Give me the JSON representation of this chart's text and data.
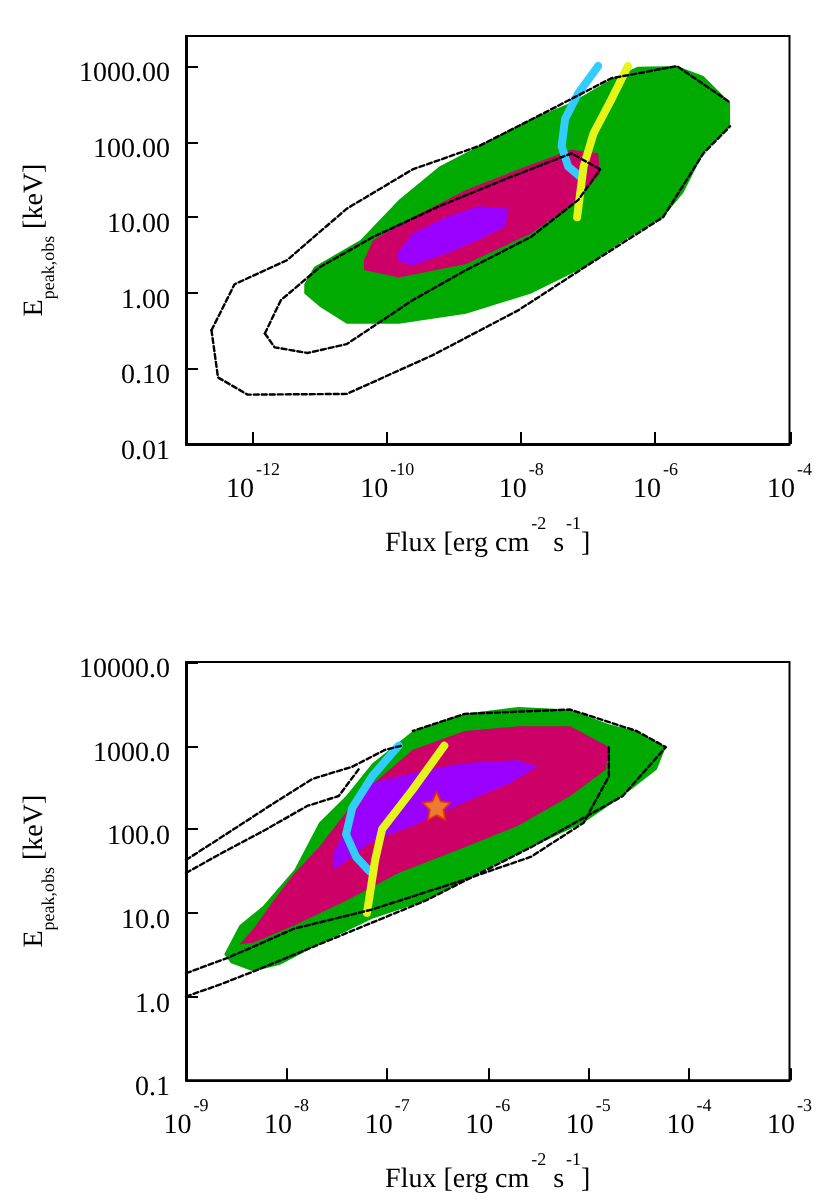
{
  "chart_data": [
    {
      "type": "area",
      "xlabel": "Flux [erg cm$^{-2}$ s$^{-1}$]",
      "ylabel": "E$_{peak,obs}$ [keV]",
      "log": "xy",
      "xlim": [
        1e-13,
        0.0001
      ],
      "ylim": [
        0.01,
        2500
      ],
      "xticks": [
        {
          "value": 1e-12,
          "label": "10$^{-12}$"
        },
        {
          "value": 1e-10,
          "label": "10$^{-10}$"
        },
        {
          "value": 1e-08,
          "label": "10$^{-8}$"
        },
        {
          "value": 1e-06,
          "label": "10$^{-6}$"
        },
        {
          "value": 0.0001,
          "label": "10$^{-4}$"
        }
      ],
      "yticks": [
        0.01,
        {
          "value": 0.1,
          "label": "0.10"
        },
        {
          "value": 1,
          "label": "1.00"
        },
        {
          "value": 10,
          "label": "10.00"
        },
        {
          "value": 100,
          "label": "100.00"
        },
        {
          "value": 1000,
          "label": "1000.00"
        }
      ],
      "series": [
        {
          "color": "#00aa00",
          "x": [
            5.8e-12,
            8.1e-12,
            4e-11,
            1.5e-10,
            6e-10,
            2.3e-09,
            1.4e-08,
            5.6e-08,
            2.2e-07,
            5.4e-07,
            2.1e-06,
            5.2e-06,
            1.3e-05,
            1.3e-05,
            5.2e-06,
            2.6e-06,
            1.3e-06,
            3.5e-07,
            8.9e-08,
            1.4e-08,
            1.5e-09,
            1.5e-10,
            2.5e-11,
            1e-11,
            5.8e-12
          ],
          "values": [
            1.3,
            2.2,
            5.0,
            17,
            47,
            87,
            200,
            330,
            670,
            980,
            1000,
            740,
            330,
            160,
            70,
            21,
            10,
            5.0,
            2.2,
            0.98,
            0.53,
            0.39,
            0.39,
            0.65,
            0.98
          ]
        },
        {
          "color": "#cc0066",
          "x": [
            4.5e-11,
            6.2e-11,
            2.4e-10,
            1.5e-09,
            9.1e-09,
            5.6e-08,
            1.4e-07,
            1.5e-07,
            7.1e-08,
            1.4e-08,
            1.5e-09,
            1.5e-10,
            4.5e-11
          ],
          "values": [
            2.7,
            5.0,
            10,
            23,
            43,
            78,
            70,
            38,
            17,
            6.1,
            2.4,
            1.6,
            2.0
          ]
        },
        {
          "color": "#9900ff",
          "x": [
            1.4e-10,
            2.4e-10,
            7.6e-10,
            2.3e-09,
            6.5e-09,
            5.8e-09,
            2.3e-09,
            7.6e-10,
            2.4e-10,
            1.5e-10
          ],
          "values": [
            3.3,
            6.1,
            10,
            14,
            13,
            7.6,
            5.0,
            3.3,
            2.3,
            2.6
          ]
        },
        {
          "type": "line",
          "color": "#000000",
          "line_style": "dashed",
          "marker": "none",
          "x": [
            2.4e-13,
            5.3e-13,
            3.2e-12,
            2.5e-11,
            2.4e-10,
            2.3e-09,
            2.2e-08,
            2.2e-07,
            2.1e-06,
            1.3e-05
          ],
          "values": [
            0.32,
            1.3,
            2.7,
            13,
            43,
            87,
            240,
            690,
            1000,
            330
          ]
        },
        {
          "type": "line",
          "color": "#000000",
          "line_style": "dashed",
          "marker": "none",
          "x": [
            2.4e-13,
            3e-13,
            8.3e-13,
            2.5e-11,
            4.8e-10,
            9.1e-09,
            8.9e-08,
            1.3e-06,
            5.2e-06,
            1.3e-05
          ],
          "values": [
            0.32,
            0.076,
            0.045,
            0.046,
            0.15,
            0.59,
            2.2,
            10,
            70,
            160
          ]
        },
        {
          "type": "line",
          "color": "#000000",
          "line_style": "dashed",
          "marker": "none",
          "x": [
            1.5e-12,
            2.6e-12,
            1e-11,
            6.2e-11,
            6e-10,
            5.8e-09,
            5.6e-08,
            1.5e-07
          ],
          "values": [
            0.29,
            0.8,
            2.2,
            5.5,
            14,
            32,
            70,
            43
          ]
        },
        {
          "type": "line",
          "color": "#000000",
          "line_style": "dashed",
          "marker": "none",
          "x": [
            1.5e-12,
            2.1e-12,
            6.5e-12,
            2.5e-11,
            2.4e-10,
            1.5e-09,
            1.4e-08,
            7.1e-08,
            1.5e-07
          ],
          "values": [
            0.29,
            0.19,
            0.16,
            0.21,
            0.8,
            2.0,
            5.5,
            17,
            43
          ]
        },
        {
          "type": "line",
          "color": "#33ccff",
          "line_style": "solid",
          "marker": "none",
          "x": [
            1.4e-07,
            7.1e-08,
            4.5e-08,
            4e-08,
            5e-08,
            7.4e-08
          ],
          "values": [
            1000,
            440,
            200,
            87,
            47,
            35
          ]
        },
        {
          "type": "line",
          "color": "#e5f51a",
          "line_style": "solid",
          "marker": "none",
          "x": [
            3.9e-07,
            2.2e-07,
            1.2e-07,
            8.5e-08,
            6.8e-08
          ],
          "values": [
            1000,
            360,
            130,
            47,
            10
          ]
        }
      ]
    },
    {
      "type": "area",
      "xlabel": "Flux [erg cm$^{-2}$ s$^{-1}$]",
      "ylabel": "E$_{peak,obs}$ [keV]",
      "log": "xy",
      "xlim": [
        1e-09,
        0.001
      ],
      "ylim": [
        0.1,
        10000
      ],
      "xticks": [
        {
          "value": 1e-09,
          "label": "10$^{-9}$"
        },
        {
          "value": 1e-08,
          "label": "10$^{-8}$"
        },
        {
          "value": 1e-07,
          "label": "10$^{-7}$"
        },
        {
          "value": 1e-06,
          "label": "10$^{-6}$"
        },
        {
          "value": 1e-05,
          "label": "10$^{-5}$"
        },
        {
          "value": 0.0001,
          "label": "10$^{-4}$"
        },
        {
          "value": 0.001,
          "label": "10$^{-3}$"
        }
      ],
      "yticks": [
        0.1,
        {
          "value": 1,
          "label": "1.0"
        },
        {
          "value": 10,
          "label": "10.0"
        },
        {
          "value": 100,
          "label": "100.0"
        },
        {
          "value": 1000,
          "label": "1000.0"
        },
        {
          "value": 10000,
          "label": "10000.0"
        }
      ],
      "series": [
        {
          "color": "#00aa00",
          "x": [
            2.4e-09,
            3.4e-09,
            5.8e-09,
            1.2e-08,
            2.1e-08,
            3.9e-08,
            7.1e-08,
            1.8e-07,
            5.9e-07,
            2e-06,
            6.6e-06,
            1.6e-05,
            3e-05,
            5.9e-05,
            4.8e-05,
            2.2e-05,
            9e-06,
            2.7e-06,
            8e-07,
            2.4e-07,
            7.1e-08,
            2.1e-08,
            8.6e-09,
            4.7e-09,
            2.8e-09
          ],
          "values": [
            3.2,
            7.1,
            12,
            33,
            120,
            250,
            610,
            1500,
            2400,
            2900,
            2700,
            1800,
            1500,
            960,
            520,
            250,
            120,
            61,
            30,
            14,
            8.5,
            4.2,
            2.4,
            2.0,
            2.5
          ]
        },
        {
          "color": "#cc0066",
          "x": [
            3.4e-09,
            4.7e-09,
            7.4e-09,
            1.2e-08,
            2.1e-08,
            5.2e-08,
            1.8e-07,
            5.9e-07,
            2e-06,
            6.6e-06,
            1.6e-05,
            1.5e-05,
            6.6e-06,
            2e-06,
            5.9e-07,
            1.3e-07,
            3.9e-08,
            1.2e-08,
            4.7e-09
          ],
          "values": [
            4.2,
            6.5,
            14,
            30,
            61,
            250,
            890,
            1500,
            1700,
            1700,
            960,
            520,
            250,
            110,
            61,
            30,
            14,
            7.1,
            4.4
          ]
        },
        {
          "color": "#9900ff",
          "x": [
            2.9e-08,
            3.9e-08,
            7.1e-08,
            1.8e-07,
            5.9e-07,
            2e-06,
            3.1e-06,
            1.7e-06,
            5.9e-07,
            1.8e-07,
            7.1e-08,
            2.9e-08
          ],
          "values": [
            51,
            100,
            360,
            470,
            620,
            670,
            560,
            360,
            210,
            110,
            72,
            32
          ]
        },
        {
          "type": "line",
          "color": "#000000",
          "line_style": "dashed",
          "marker": "none",
          "x": [
            1e-09,
            2.2e-09,
            6.3e-09,
            1.8e-08,
            4.5e-08,
            9.5e-08,
            1.4e-07
          ],
          "values": [
            43,
            79,
            180,
            400,
            560,
            890,
            1000
          ]
        },
        {
          "type": "line",
          "color": "#000000",
          "line_style": "dashed",
          "marker": "none",
          "x": [
            1e-09,
            2.2e-09,
            6.3e-09,
            1.6e-08,
            3.3e-08,
            5.2e-08
          ],
          "values": [
            30,
            51,
            100,
            190,
            250,
            520
          ]
        },
        {
          "type": "line",
          "color": "#000000",
          "line_style": "dashed",
          "marker": "none",
          "x": [
            1e-09,
            2.6e-09,
            1.2e-08,
            7.1e-08,
            5.9e-07,
            2.7e-06,
            9e-06,
            1.6e-05,
            1.6e-05
          ],
          "values": [
            1.9,
            2.9,
            6.5,
            11,
            25,
            47,
            120,
            430,
            960
          ]
        },
        {
          "type": "line",
          "color": "#000000",
          "line_style": "dashed",
          "marker": "none",
          "x": [
            1e-09,
            2.2e-09,
            4.7e-09,
            2.1e-08,
            2.4e-07,
            2.7e-06,
            2.2e-05,
            5.9e-05,
            3e-05,
            6.6e-06,
            5.9e-07,
            1.8e-07
          ],
          "values": [
            1.0,
            1.4,
            2.0,
            4.2,
            14,
            61,
            250,
            960,
            1500,
            2700,
            2400,
            1500
          ]
        },
        {
          "type": "line",
          "color": "#33ccff",
          "line_style": "solid",
          "marker": "none",
          "x": [
            1.3e-07,
            7.1e-08,
            4.5e-08,
            3.9e-08,
            4.9e-08,
            6.6e-08
          ],
          "values": [
            1000,
            430,
            180,
            87,
            47,
            32
          ]
        },
        {
          "type": "line",
          "color": "#e5f51a",
          "line_style": "solid",
          "marker": "none",
          "x": [
            3.7e-07,
            1.8e-07,
            8.9e-08,
            7.6e-08,
            6.3e-08
          ],
          "values": [
            1000,
            300,
            100,
            43,
            10
          ]
        },
        {
          "type": "scatter",
          "color": "#ff9900",
          "marker": "star",
          "x": [
            3.1e-07
          ],
          "values": [
            190
          ]
        }
      ]
    }
  ]
}
